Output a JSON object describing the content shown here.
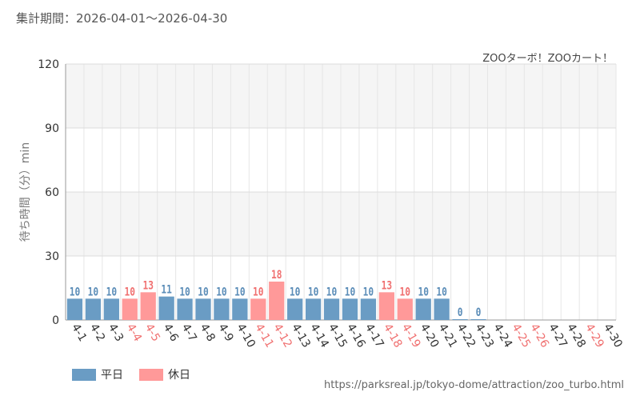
{
  "header": {
    "period": "集計期間：2026-04-01～2026-04-30",
    "attraction": "ZOOターボ！ZOOカート！"
  },
  "legend": {
    "weekday": "平日",
    "holiday": "休日"
  },
  "source_url": "https://parksreal.jp/tokyo-dome/attraction/zoo_turbo.html",
  "colors": {
    "weekday": "#6a9cc4",
    "holiday": "#ff9999",
    "weekday_label": "#5b8db8",
    "holiday_label": "#f07070",
    "tick_weekday": "#333333",
    "tick_holiday": "#f07070"
  },
  "chart_data": {
    "type": "bar",
    "ylabel": "待ち時間（分）min",
    "ylim": [
      0,
      120
    ],
    "yticks": [
      0,
      30,
      60,
      90,
      120
    ],
    "grid": true,
    "legend_position": "bottom-left",
    "categories": [
      "4-1",
      "4-2",
      "4-3",
      "4-4",
      "4-5",
      "4-6",
      "4-7",
      "4-8",
      "4-9",
      "4-10",
      "4-11",
      "4-12",
      "4-13",
      "4-14",
      "4-15",
      "4-16",
      "4-17",
      "4-18",
      "4-19",
      "4-20",
      "4-21",
      "4-22",
      "4-23",
      "4-24",
      "4-25",
      "4-26",
      "4-27",
      "4-28",
      "4-29",
      "4-30"
    ],
    "values": [
      10,
      10,
      10,
      10,
      13,
      11,
      10,
      10,
      10,
      10,
      10,
      18,
      10,
      10,
      10,
      10,
      10,
      13,
      10,
      10,
      10,
      0,
      0,
      null,
      null,
      null,
      null,
      null,
      null,
      null
    ],
    "day_type": [
      "weekday",
      "weekday",
      "weekday",
      "holiday",
      "holiday",
      "weekday",
      "weekday",
      "weekday",
      "weekday",
      "weekday",
      "holiday",
      "holiday",
      "weekday",
      "weekday",
      "weekday",
      "weekday",
      "weekday",
      "holiday",
      "holiday",
      "weekday",
      "weekday",
      "weekday",
      "weekday",
      "weekday",
      "holiday",
      "holiday",
      "weekday",
      "weekday",
      "holiday",
      "weekday"
    ]
  }
}
